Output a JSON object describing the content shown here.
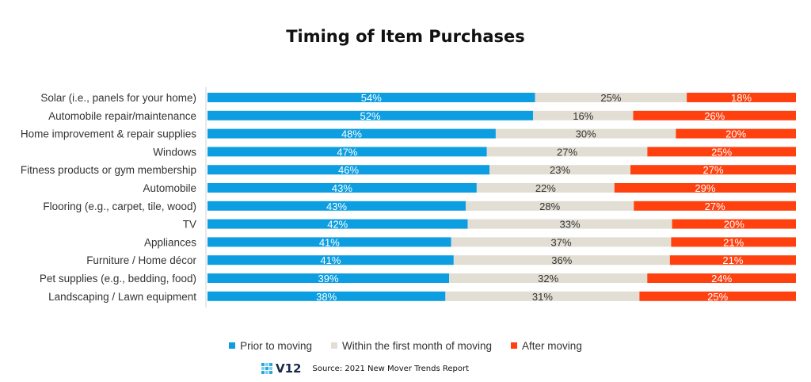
{
  "chart_data": {
    "type": "bar",
    "orientation": "horizontal",
    "stacked": true,
    "title": "Timing of Item Purchases",
    "categories": [
      "Solar (i.e., panels for your home)",
      "Automobile repair/maintenance",
      "Home improvement & repair supplies",
      "Windows",
      "Fitness products or gym membership",
      "Automobile",
      "Flooring (e.g., carpet, tile, wood)",
      "TV",
      "Appliances",
      "Furniture / Home décor",
      "Pet supplies (e.g., bedding, food)",
      "Landscaping / Lawn equipment"
    ],
    "series": [
      {
        "name": "Prior to moving",
        "color": "#0c9ee0",
        "label_color": "#ffffff",
        "values": [
          54,
          52,
          48,
          47,
          46,
          43,
          43,
          42,
          41,
          41,
          39,
          38
        ]
      },
      {
        "name": "Within the first month of moving",
        "color": "#e2ded3",
        "label_color": "#333333",
        "values": [
          25,
          16,
          30,
          27,
          23,
          22,
          28,
          33,
          37,
          36,
          32,
          31
        ]
      },
      {
        "name": "After moving",
        "color": "#ff4110",
        "label_color": "#ffffff",
        "values": [
          18,
          26,
          20,
          25,
          27,
          29,
          27,
          20,
          21,
          21,
          24,
          25
        ]
      }
    ],
    "value_suffix": "%",
    "legend_position": "bottom"
  },
  "footer": {
    "logo_text": "V12",
    "source": "Source: 2021 New Mover Trends Report"
  }
}
